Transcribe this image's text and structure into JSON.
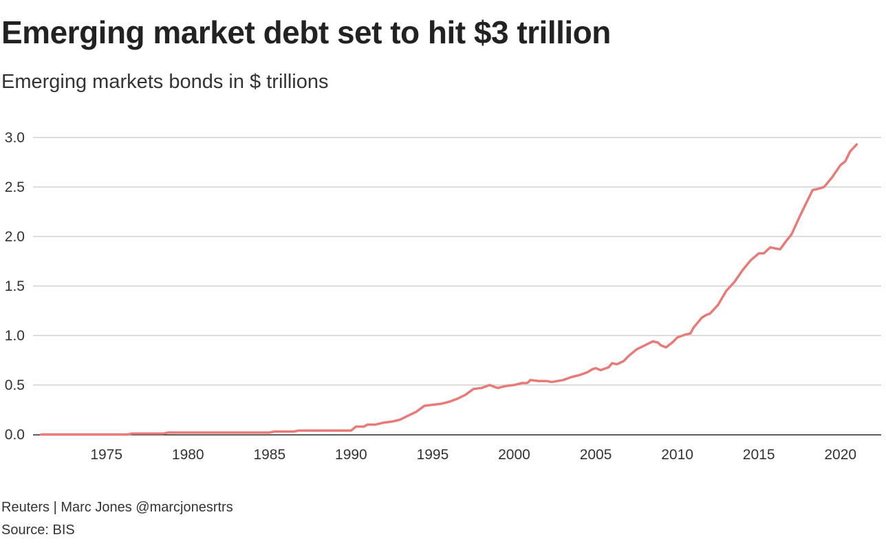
{
  "title": "Emerging market debt set to hit $3 trillion",
  "subtitle": "Emerging markets bonds in $ trillions",
  "credit": "Reuters | Marc Jones @marcjonesrtrs",
  "source": "Source: BIS",
  "colors": {
    "line": "#e87a78",
    "grid": "#c8c8c8",
    "baseline": "#222222"
  },
  "chart_data": {
    "type": "line",
    "title": "Emerging market debt set to hit $3 trillion",
    "xlabel": "",
    "ylabel": "",
    "xlim": [
      1970.5,
      2022.5
    ],
    "ylim": [
      0,
      3.0
    ],
    "xticks": [
      1975,
      1980,
      1985,
      1990,
      1995,
      2000,
      2005,
      2010,
      2015,
      2020
    ],
    "yticks": [
      0.0,
      0.5,
      1.0,
      1.5,
      2.0,
      2.5,
      3.0
    ],
    "ytick_labels": [
      "0.0",
      "0.5",
      "1.0",
      "1.5",
      "2.0",
      "2.5",
      "3.0"
    ],
    "grid": true,
    "series": [
      {
        "x": [
          1971.0,
          1976.3,
          1976.6,
          1978.5,
          1978.8,
          1985.0,
          1985.3,
          1986.5,
          1986.8,
          1990.0,
          1990.3,
          1990.8,
          1991.0,
          1991.5,
          1992.0,
          1992.5,
          1993.0,
          1993.5,
          1994.0,
          1994.5,
          1995.0,
          1995.5,
          1996.0,
          1996.5,
          1997.0,
          1997.5,
          1998.0,
          1998.5,
          1998.8,
          1999.0,
          1999.5,
          2000.0,
          2000.5,
          2000.8,
          2001.0,
          2001.5,
          2002.0,
          2002.3,
          2003.0,
          2003.5,
          2004.0,
          2004.5,
          2004.8,
          2005.0,
          2005.3,
          2005.8,
          2006.0,
          2006.3,
          2006.7,
          2007.0,
          2007.5,
          2008.0,
          2008.5,
          2008.8,
          2009.0,
          2009.3,
          2009.7,
          2010.0,
          2010.5,
          2010.8,
          2011.0,
          2011.5,
          2011.8,
          2012.0,
          2012.5,
          2013.0,
          2013.5,
          2014.0,
          2014.5,
          2015.0,
          2015.3,
          2015.7,
          2016.0,
          2016.3,
          2016.7,
          2017.0,
          2017.5,
          2018.0,
          2018.3,
          2018.6,
          2019.0,
          2019.5,
          2020.0,
          2020.3,
          2020.6,
          2021.0
        ],
        "y": [
          0.0,
          0.0,
          0.01,
          0.01,
          0.02,
          0.02,
          0.03,
          0.03,
          0.04,
          0.04,
          0.08,
          0.08,
          0.1,
          0.1,
          0.12,
          0.13,
          0.15,
          0.19,
          0.23,
          0.29,
          0.3,
          0.31,
          0.33,
          0.36,
          0.4,
          0.46,
          0.47,
          0.5,
          0.48,
          0.47,
          0.49,
          0.5,
          0.52,
          0.52,
          0.55,
          0.54,
          0.54,
          0.53,
          0.55,
          0.58,
          0.6,
          0.63,
          0.66,
          0.67,
          0.65,
          0.68,
          0.72,
          0.71,
          0.74,
          0.79,
          0.86,
          0.9,
          0.94,
          0.93,
          0.9,
          0.88,
          0.93,
          0.98,
          1.01,
          1.02,
          1.08,
          1.18,
          1.21,
          1.22,
          1.31,
          1.45,
          1.54,
          1.66,
          1.76,
          1.83,
          1.83,
          1.89,
          1.88,
          1.87,
          1.96,
          2.02,
          2.2,
          2.37,
          2.47,
          2.48,
          2.5,
          2.6,
          2.72,
          2.76,
          2.86,
          2.93
        ]
      }
    ]
  }
}
